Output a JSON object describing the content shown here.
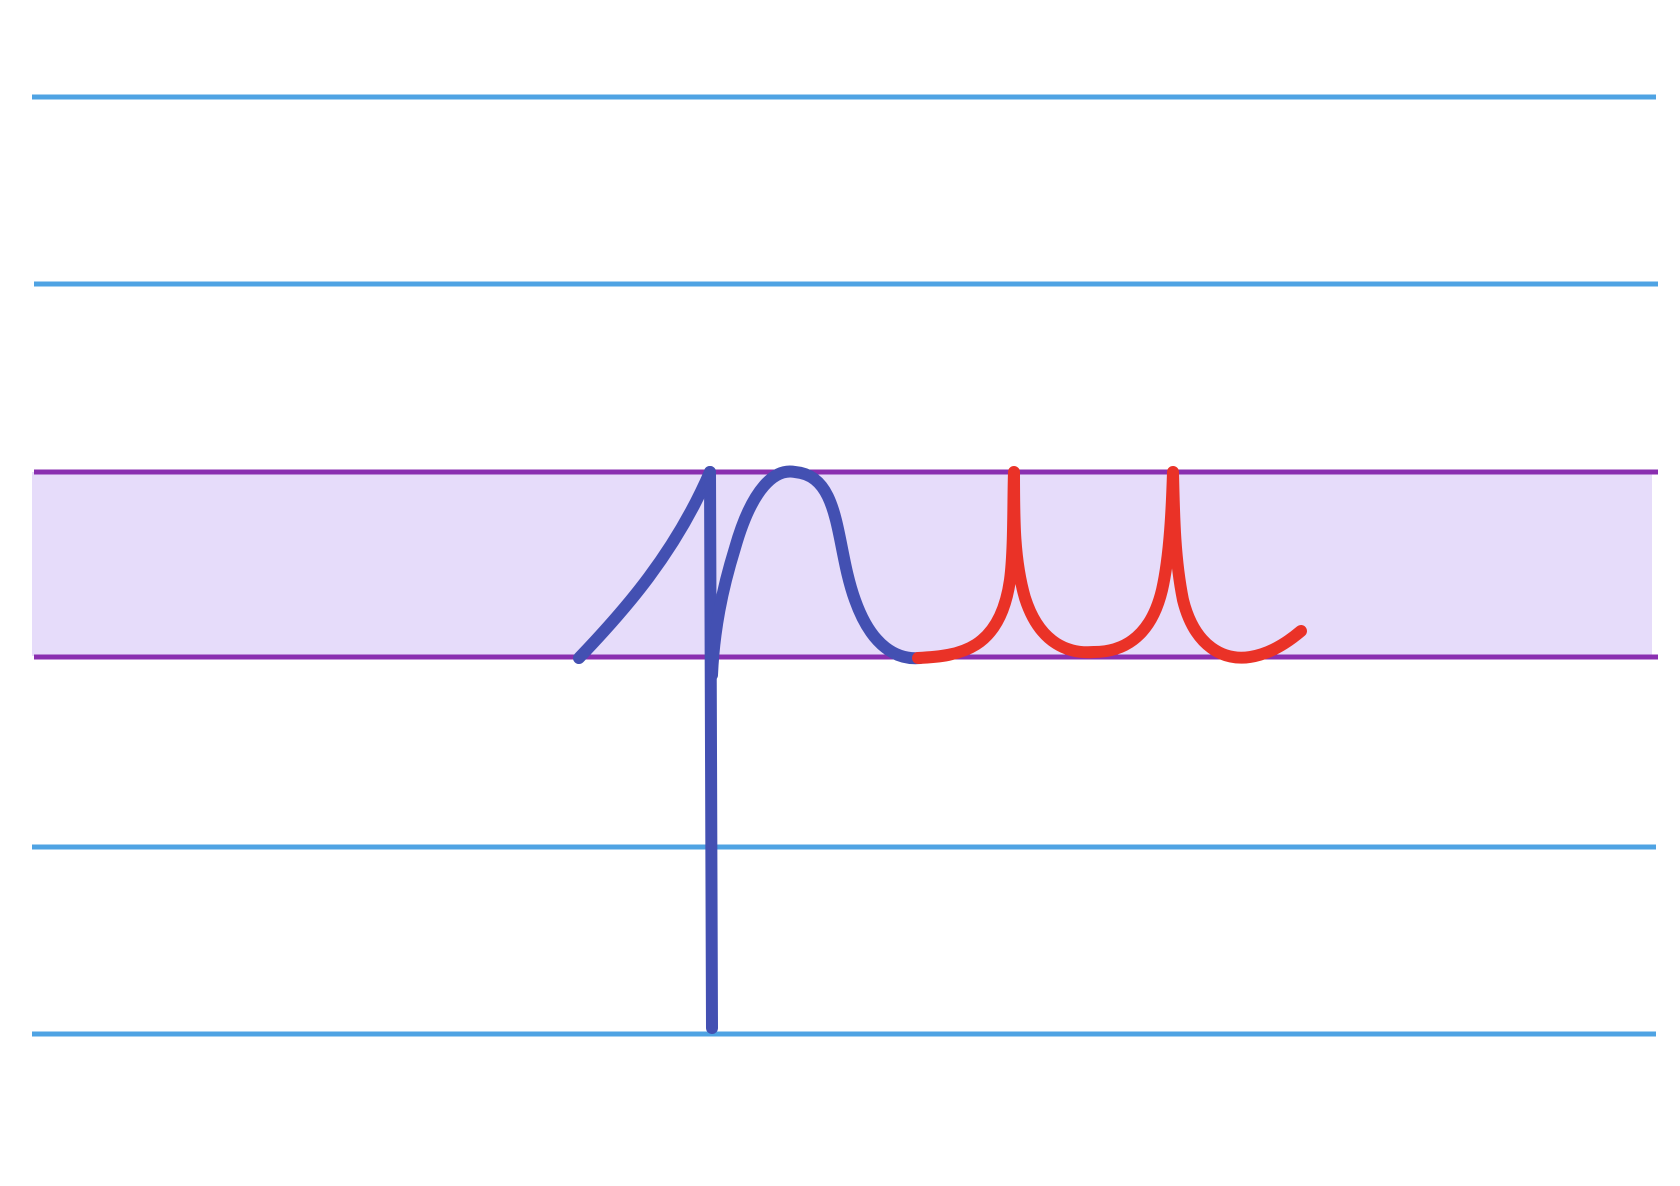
{
  "worksheet": {
    "colors": {
      "guide_line": "#4fa3e3",
      "midline": "#8a2fb0",
      "midzone_fill": "#e6dcfa",
      "stroke_primary": "#4350b2",
      "stroke_secondary": "#ea3227",
      "background": "#ffffff"
    },
    "guide_lines": [
      {
        "name": "top-ascender-line",
        "role": "ascender"
      },
      {
        "name": "upper-line",
        "role": "cap"
      },
      {
        "name": "midline",
        "role": "x-height"
      },
      {
        "name": "baseline",
        "role": "base"
      },
      {
        "name": "lower-line",
        "role": "descender-guide"
      },
      {
        "name": "bottom-descender-line",
        "role": "descender"
      }
    ],
    "strokes": [
      {
        "name": "primary-stroke",
        "order": 1
      },
      {
        "name": "secondary-stroke",
        "order": 2
      }
    ]
  }
}
